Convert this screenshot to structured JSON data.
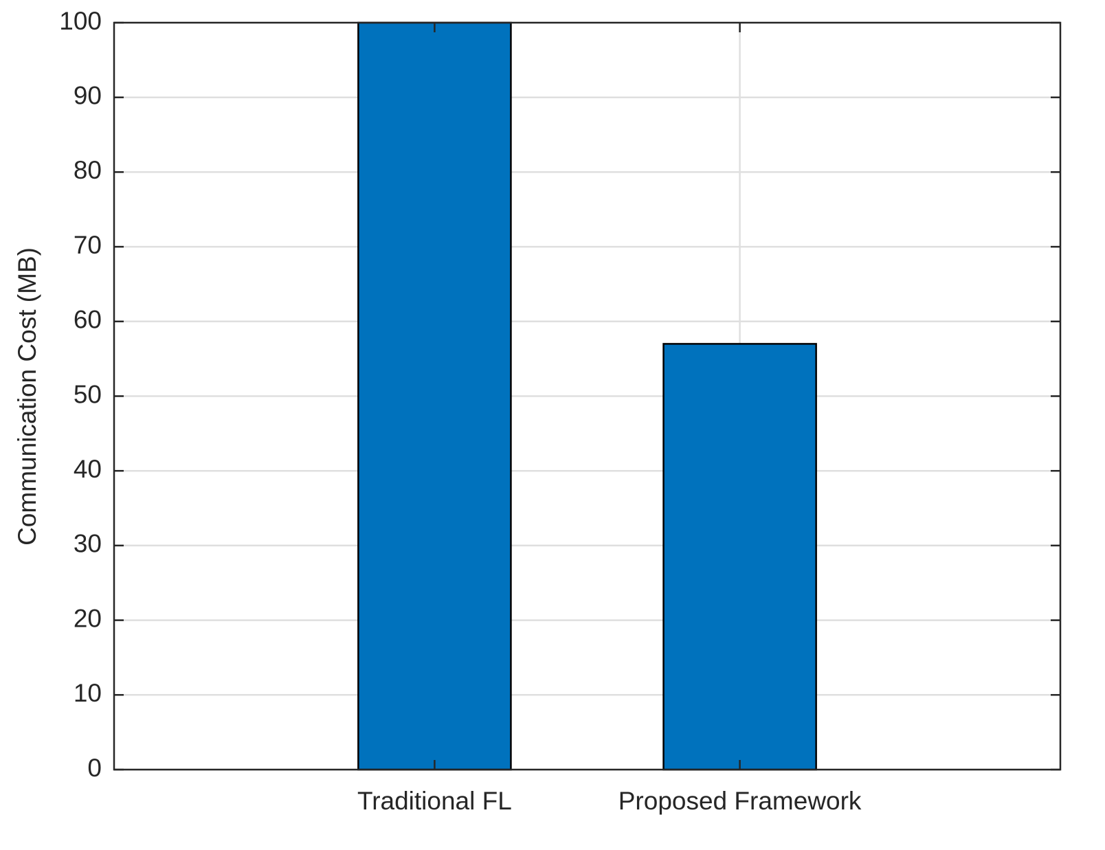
{
  "chart_data": {
    "type": "bar",
    "ylabel": "Communication Cost (MB)",
    "categories": [
      "Traditional FL",
      "Proposed Framework"
    ],
    "values": [
      100,
      57
    ],
    "color": "#0072bd",
    "ylim": [
      0,
      100
    ],
    "yticks": [
      0,
      10,
      20,
      30,
      40,
      50,
      60,
      70,
      80,
      90,
      100
    ],
    "grid": true
  }
}
